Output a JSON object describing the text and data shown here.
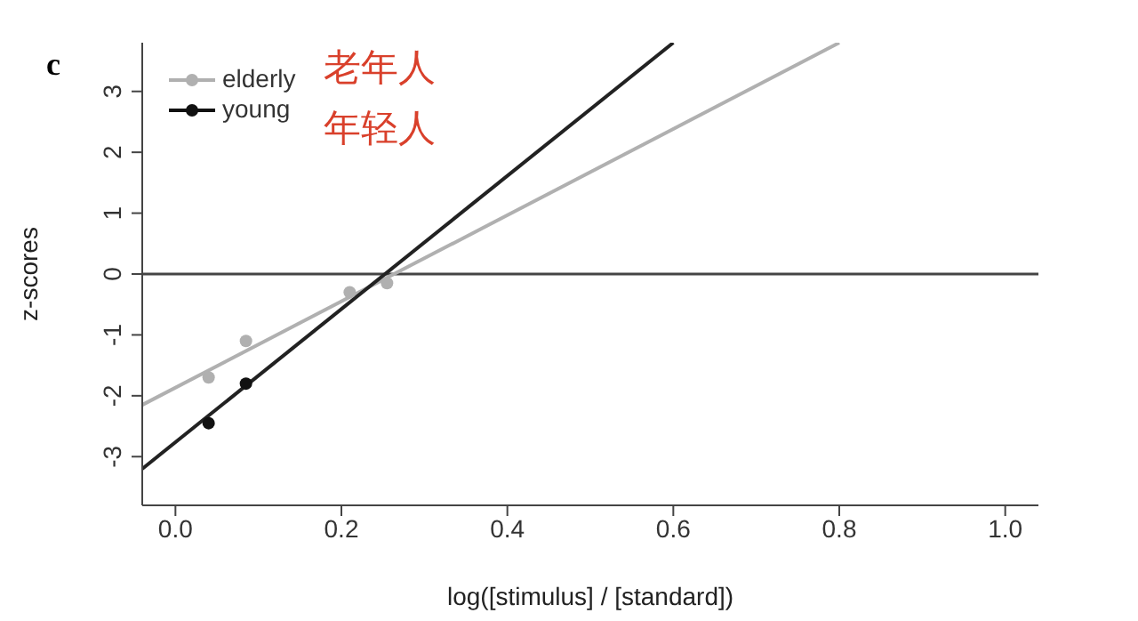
{
  "chart_data": {
    "type": "scatter",
    "title": "c",
    "xlabel": "log([stimulus] / [standard])",
    "ylabel": "z-scores",
    "annotations": [
      "老年人",
      "年轻人"
    ],
    "series": [
      {
        "name": "elderly",
        "color": "#b0b0b0",
        "marker": "circle",
        "x": [
          0.04,
          0.085,
          0.21,
          0.255
        ],
        "values": [
          -1.7,
          -1.1,
          -0.3,
          -0.15
        ]
      },
      {
        "name": "young",
        "color": "#111111",
        "marker": "circle",
        "x": [
          0.04,
          0.085
        ],
        "values": [
          -2.45,
          -1.8
        ]
      },
      {
        "type": "line",
        "color": "#b0b0b0",
        "x": [
          -0.04,
          0.8
        ],
        "values": [
          -2.15,
          3.8
        ]
      },
      {
        "type": "line",
        "color": "#222222",
        "x": [
          -0.04,
          0.6
        ],
        "values": [
          -3.2,
          3.8
        ]
      }
    ],
    "legend": "top left",
    "ref_lines": [
      {
        "axis": "y",
        "value": 0,
        "color": "#444444"
      }
    ],
    "xlim": [
      -0.04,
      1.04
    ],
    "xticks": [
      {
        "value": 0,
        "label": "0.0"
      },
      0.2,
      0.4,
      0.6,
      0.8,
      {
        "value": 1,
        "label": "1.0"
      }
    ],
    "ylim": [
      -3.8,
      3.8
    ],
    "yticks": [
      -3,
      -2,
      -1,
      0,
      1,
      2,
      3
    ]
  }
}
